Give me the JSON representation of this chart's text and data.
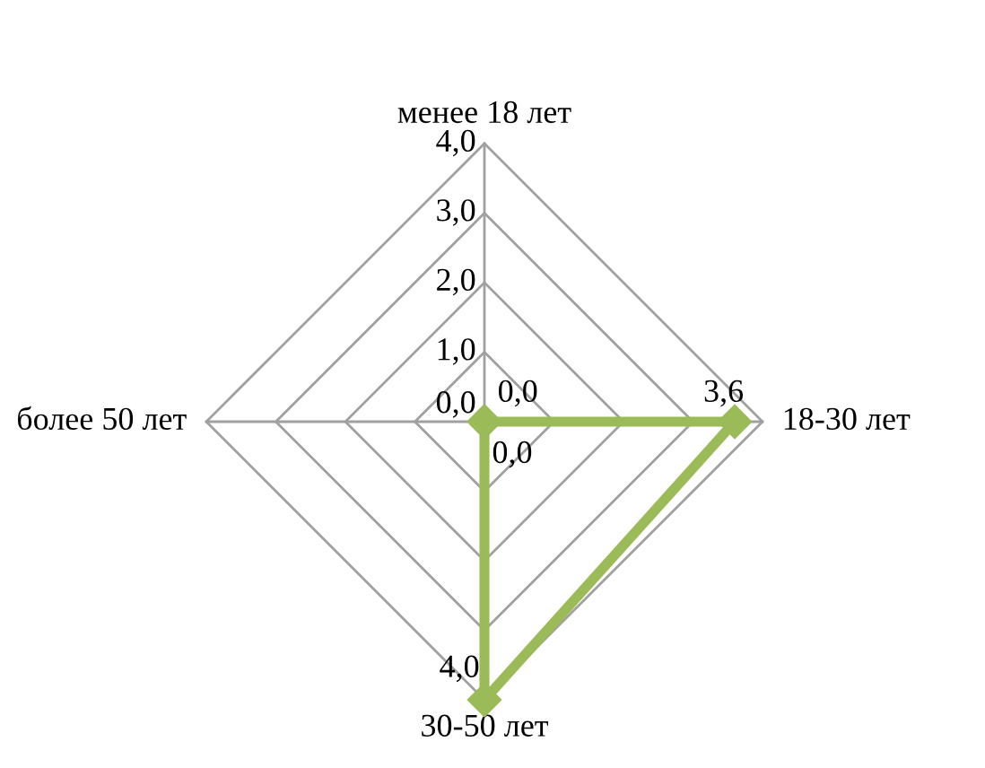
{
  "chart_data": {
    "type": "radar",
    "categories": [
      "менее 18 лет",
      "18-30 лет",
      "30-50 лет",
      "более 50 лет"
    ],
    "series": [
      {
        "color": "#9bbb59",
        "values": [
          0.0,
          3.6,
          4.0,
          0.0
        ],
        "value_labels": [
          "0,0",
          "3,6",
          "4,0",
          "0,0"
        ]
      }
    ],
    "ylim": [
      0,
      4
    ],
    "yticks": [
      {
        "value": 0,
        "label": "0,0"
      },
      {
        "value": 1,
        "label": "1,0"
      },
      {
        "value": 2,
        "label": "2,0"
      },
      {
        "value": 3,
        "label": "3,0"
      },
      {
        "value": 4,
        "label": "4,0"
      }
    ],
    "grid": true,
    "marker": "diamond",
    "line_style": "solid"
  }
}
